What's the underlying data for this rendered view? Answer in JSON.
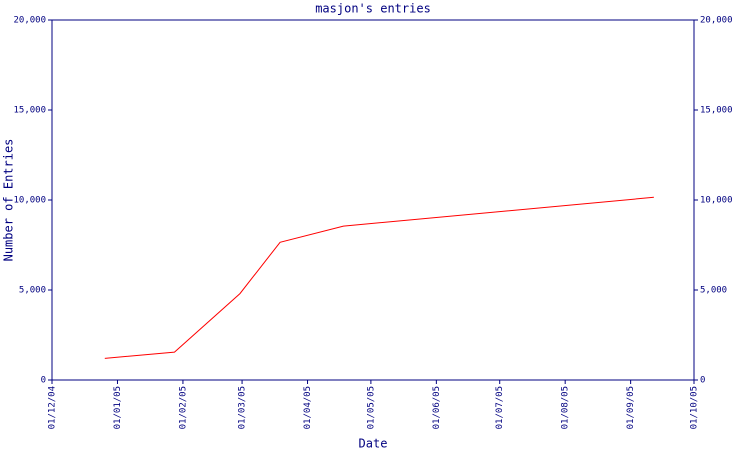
{
  "chart_data": {
    "type": "line",
    "title": "masjon's entries",
    "x_label": "Date",
    "y_label": "Number of Entries",
    "x": [
      "2004-12-26",
      "2005-01-28",
      "2005-02-28",
      "2005-03-19",
      "2005-04-18",
      "2005-09-12"
    ],
    "series": [
      {
        "name": "entries",
        "color": "#ff0000",
        "values": [
          1200,
          1550,
          4800,
          7650,
          8550,
          10150
        ]
      }
    ],
    "xlim": [
      "2004-12-01",
      "2005-10-01"
    ],
    "xticks": [
      {
        "value": "2004-12-01",
        "label": "01/12/04"
      },
      {
        "value": "2005-01-01",
        "label": "01/01/05"
      },
      {
        "value": "2005-02-01",
        "label": "01/02/05"
      },
      {
        "value": "2005-03-01",
        "label": "01/03/05"
      },
      {
        "value": "2005-04-01",
        "label": "01/04/05"
      },
      {
        "value": "2005-05-01",
        "label": "01/05/05"
      },
      {
        "value": "2005-06-01",
        "label": "01/06/05"
      },
      {
        "value": "2005-07-01",
        "label": "01/07/05"
      },
      {
        "value": "2005-08-01",
        "label": "01/08/05"
      },
      {
        "value": "2005-09-01",
        "label": "01/09/05"
      },
      {
        "value": "2005-10-01",
        "label": "01/10/05"
      }
    ],
    "ylim": [
      0,
      20000
    ],
    "yticks": [
      0,
      {
        "value": 5000,
        "label": "5,000"
      },
      {
        "value": 10000,
        "label": "10,000"
      },
      {
        "value": 15000,
        "label": "15,000"
      },
      {
        "value": 20000,
        "label": "20,000"
      }
    ],
    "axis_color": "#000080",
    "grid": false
  }
}
